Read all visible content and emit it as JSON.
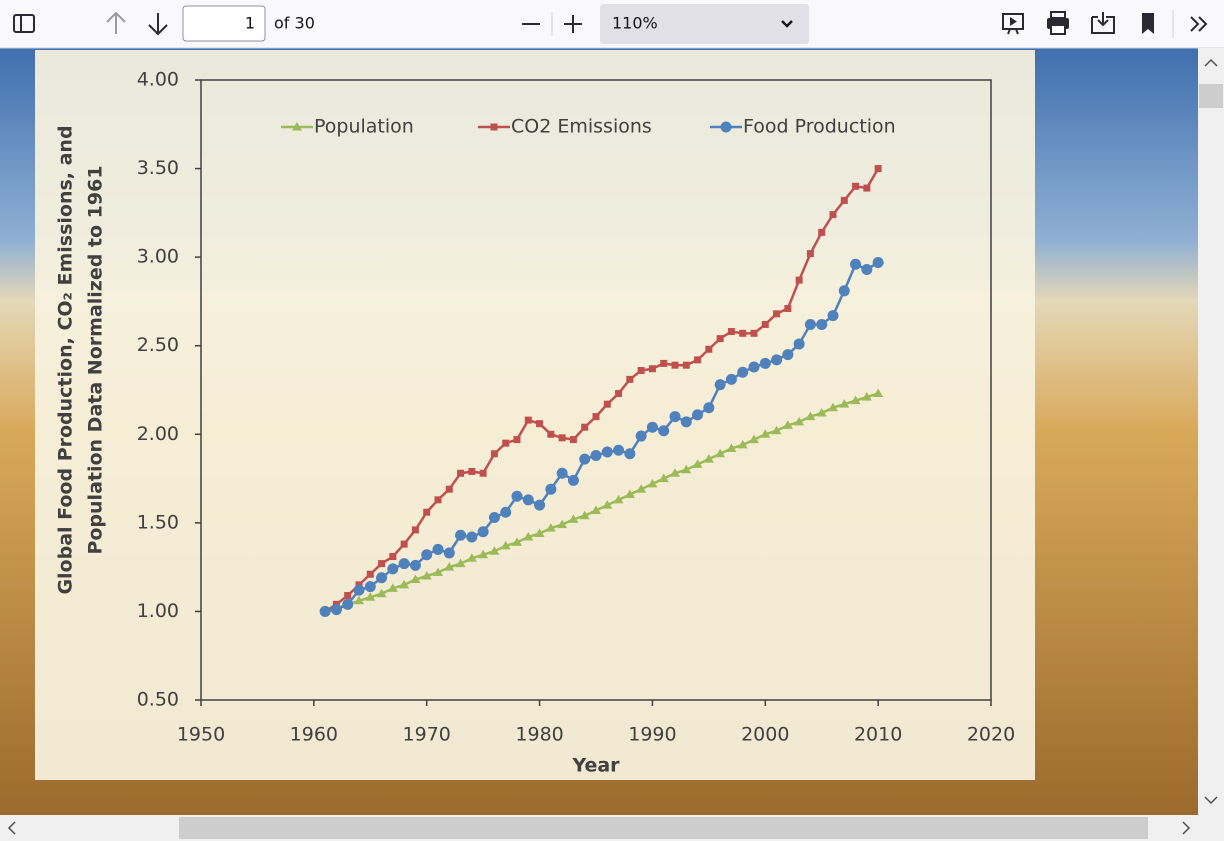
{
  "toolbar": {
    "page": "1",
    "page_count": "of 30",
    "zoom": "110%"
  },
  "chart_data": {
    "type": "line",
    "xlabel": "Year",
    "ylabel": [
      "Global Food Production, CO₂ Emissions, and",
      "Population Data Normalized to 1961"
    ],
    "x": [
      1961,
      1962,
      1963,
      1964,
      1965,
      1966,
      1967,
      1968,
      1969,
      1970,
      1971,
      1972,
      1973,
      1974,
      1975,
      1976,
      1977,
      1978,
      1979,
      1980,
      1981,
      1982,
      1983,
      1984,
      1985,
      1986,
      1987,
      1988,
      1989,
      1990,
      1991,
      1992,
      1993,
      1994,
      1995,
      1996,
      1997,
      1998,
      1999,
      2000,
      2001,
      2002,
      2003,
      2004,
      2005,
      2006,
      2007,
      2008,
      2009,
      2010
    ],
    "series": [
      {
        "name": "Population",
        "color": "#9bbb59",
        "marker": "triangle",
        "values": [
          1.0,
          1.02,
          1.04,
          1.06,
          1.08,
          1.1,
          1.13,
          1.15,
          1.18,
          1.2,
          1.22,
          1.25,
          1.27,
          1.3,
          1.32,
          1.34,
          1.37,
          1.39,
          1.42,
          1.44,
          1.47,
          1.49,
          1.52,
          1.54,
          1.57,
          1.6,
          1.63,
          1.66,
          1.69,
          1.72,
          1.75,
          1.78,
          1.8,
          1.83,
          1.86,
          1.89,
          1.92,
          1.94,
          1.97,
          2.0,
          2.02,
          2.05,
          2.07,
          2.1,
          2.12,
          2.15,
          2.17,
          2.19,
          2.21,
          2.23
        ]
      },
      {
        "name": "CO2 Emissions",
        "color": "#c0504d",
        "marker": "square",
        "values": [
          1.0,
          1.04,
          1.09,
          1.15,
          1.21,
          1.27,
          1.31,
          1.38,
          1.46,
          1.56,
          1.63,
          1.69,
          1.78,
          1.79,
          1.78,
          1.89,
          1.95,
          1.97,
          2.08,
          2.06,
          2.0,
          1.98,
          1.97,
          2.04,
          2.1,
          2.17,
          2.23,
          2.31,
          2.36,
          2.37,
          2.4,
          2.39,
          2.39,
          2.42,
          2.48,
          2.54,
          2.58,
          2.57,
          2.57,
          2.62,
          2.68,
          2.71,
          2.87,
          3.02,
          3.14,
          3.24,
          3.32,
          3.4,
          3.39,
          3.5
        ]
      },
      {
        "name": "Food Production",
        "color": "#4f81bd",
        "marker": "circle",
        "values": [
          1.0,
          1.01,
          1.04,
          1.12,
          1.14,
          1.19,
          1.24,
          1.27,
          1.26,
          1.32,
          1.35,
          1.33,
          1.43,
          1.42,
          1.45,
          1.53,
          1.56,
          1.65,
          1.63,
          1.6,
          1.69,
          1.78,
          1.74,
          1.86,
          1.88,
          1.9,
          1.91,
          1.89,
          1.99,
          2.04,
          2.02,
          2.1,
          2.07,
          2.11,
          2.15,
          2.28,
          2.31,
          2.35,
          2.38,
          2.4,
          2.42,
          2.45,
          2.51,
          2.62,
          2.62,
          2.67,
          2.81,
          2.96,
          2.93,
          2.97
        ]
      }
    ],
    "xlim": [
      1950,
      2020
    ],
    "xticks": [
      1950,
      1960,
      1970,
      1980,
      1990,
      2000,
      2010,
      2020
    ],
    "ylim": [
      0.5,
      4.0
    ],
    "yticks": [
      {
        "value": 0.5,
        "label": "0.50"
      },
      {
        "value": 1,
        "label": "1.00"
      },
      {
        "value": 1.5,
        "label": "1.50"
      },
      {
        "value": 2,
        "label": "2.00"
      },
      {
        "value": 2.5,
        "label": "2.50"
      },
      {
        "value": 3,
        "label": "3.00"
      },
      {
        "value": 3.5,
        "label": "3.50"
      },
      {
        "value": 4,
        "label": "4.00"
      }
    ],
    "legend": "top",
    "grid": false
  }
}
